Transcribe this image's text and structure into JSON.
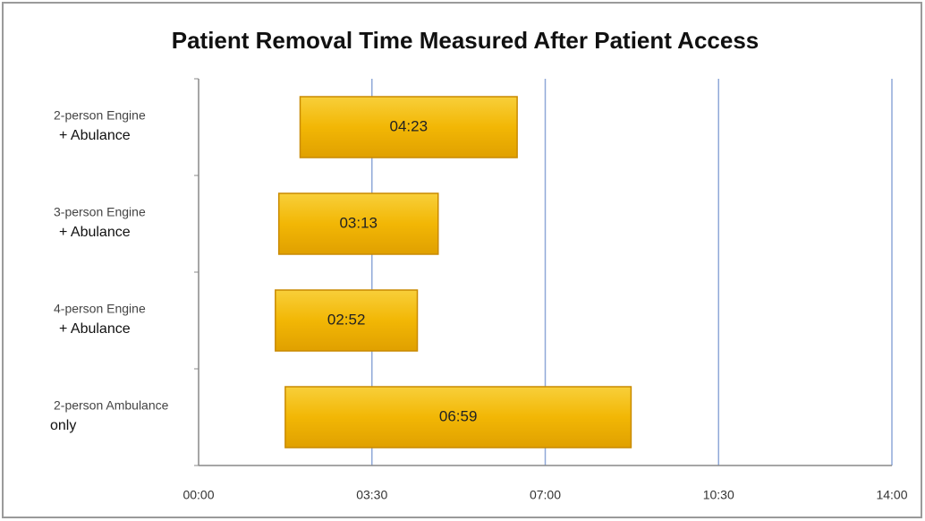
{
  "chart_data": {
    "type": "floating-bar",
    "title": "Patient Removal Time Measured After Patient Access",
    "categories": [
      [
        "2-person Engine",
        "+ Abulance"
      ],
      [
        "3-person Engine",
        "+ Abulance"
      ],
      [
        "4-person Engine",
        "+ Abulance"
      ],
      [
        "2-person Ambulance",
        "only"
      ]
    ],
    "offsets": [
      2.05,
      1.62,
      1.55,
      1.75
    ],
    "values": [
      4.383,
      3.217,
      2.867,
      6.983
    ],
    "value_labels": [
      "04:23",
      "03:13",
      "02:52",
      "06:59"
    ],
    "color": "#f2b705",
    "xlim": [
      0,
      14
    ],
    "xticks": [
      {
        "value": 0,
        "label": "00:00"
      },
      {
        "value": 3.5,
        "label": "03:30"
      },
      {
        "value": 7,
        "label": "07:00"
      },
      {
        "value": 10.5,
        "label": "10:30"
      },
      {
        "value": 14,
        "label": "14:00"
      }
    ],
    "grid": true
  }
}
